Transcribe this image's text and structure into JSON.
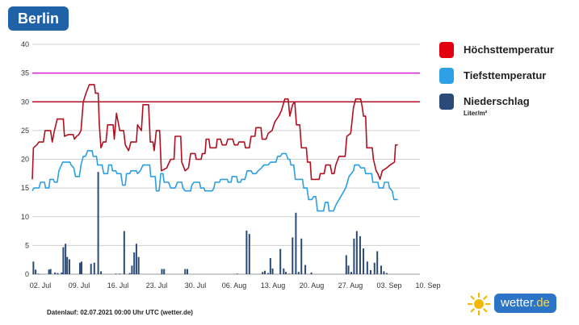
{
  "header": {
    "city": "Berlin"
  },
  "legend": {
    "items": [
      {
        "label": "Höchsttemperatur",
        "color": "#e3000f"
      },
      {
        "label": "Tiefsttemperatur",
        "color": "#2ea0e6"
      },
      {
        "label": "Niederschlag",
        "color": "#2a4a78",
        "unit": "Liter/m²"
      }
    ]
  },
  "footer": {
    "note": "Datenlauf: 02.07.2021 00:00 Uhr UTC (wetter.de)"
  },
  "brand": {
    "name": "wetter",
    "tld": ".de"
  },
  "chart_data": {
    "type": "line",
    "title": "Berlin",
    "ylim": [
      0,
      40
    ],
    "yticks": [
      0,
      5,
      10,
      15,
      20,
      25,
      30,
      35,
      40
    ],
    "x_tick_labels": [
      "02. Jul",
      "09. Jul",
      "16. Jul",
      "23. Jul",
      "30. Jul",
      "06. Aug",
      "13. Aug",
      "20. Aug",
      "27. Aug",
      "03. Sep",
      "10. Sep"
    ],
    "x_range_days": [
      0,
      70
    ],
    "reference_lines": [
      {
        "value": 35,
        "color": "#e020e0"
      },
      {
        "value": 30,
        "color": "#b01020"
      }
    ],
    "series": [
      {
        "name": "Höchsttemperatur",
        "color": "#b0101f",
        "points": [
          [
            0,
            16.5
          ],
          [
            0.2,
            22
          ],
          [
            0.8,
            22.5
          ],
          [
            1.2,
            23
          ],
          [
            2,
            23
          ],
          [
            2.3,
            25
          ],
          [
            3.3,
            25
          ],
          [
            3.6,
            23
          ],
          [
            4,
            25
          ],
          [
            4.5,
            27
          ],
          [
            5.6,
            27
          ],
          [
            5.8,
            24
          ],
          [
            6.5,
            24.3
          ],
          [
            7.4,
            24.3
          ],
          [
            7.6,
            23.5
          ],
          [
            8,
            24
          ],
          [
            8.4,
            24.3
          ],
          [
            8.8,
            25
          ],
          [
            9.2,
            30
          ],
          [
            9.7,
            31.5
          ],
          [
            10.3,
            33
          ],
          [
            11.2,
            33
          ],
          [
            11.4,
            31.5
          ],
          [
            11.9,
            31.5
          ],
          [
            12.1,
            26
          ],
          [
            12.4,
            22
          ],
          [
            12.8,
            23
          ],
          [
            13.3,
            23
          ],
          [
            13.6,
            26
          ],
          [
            14.6,
            26
          ],
          [
            14.8,
            23.5
          ],
          [
            15.2,
            28
          ],
          [
            15.8,
            25
          ],
          [
            16.5,
            25
          ],
          [
            16.8,
            22.5
          ],
          [
            17.4,
            21.5
          ],
          [
            17.8,
            23
          ],
          [
            18.8,
            23
          ],
          [
            19,
            26
          ],
          [
            19.7,
            25
          ],
          [
            20,
            29.5
          ],
          [
            21,
            29.5
          ],
          [
            21.3,
            23
          ],
          [
            21.8,
            23
          ],
          [
            22,
            21.5
          ],
          [
            22.4,
            25
          ],
          [
            23,
            25
          ],
          [
            23.3,
            18
          ],
          [
            24.3,
            18.5
          ],
          [
            24.5,
            19
          ],
          [
            25,
            20
          ],
          [
            25.6,
            20
          ],
          [
            25.8,
            24
          ],
          [
            26.8,
            24
          ],
          [
            27,
            19.5
          ],
          [
            27.6,
            18
          ],
          [
            28.2,
            18.5
          ],
          [
            28.6,
            21
          ],
          [
            29.4,
            21
          ],
          [
            29.6,
            20
          ],
          [
            30.5,
            20
          ],
          [
            30.7,
            21
          ],
          [
            31.2,
            21
          ],
          [
            31.4,
            23.5
          ],
          [
            31.9,
            23.5
          ],
          [
            32.1,
            22
          ],
          [
            33.2,
            22
          ],
          [
            33.4,
            23.5
          ],
          [
            34,
            23.5
          ],
          [
            34.3,
            22.5
          ],
          [
            35,
            22.5
          ],
          [
            35.3,
            23.5
          ],
          [
            36.2,
            23.5
          ],
          [
            36.5,
            22.5
          ],
          [
            37.1,
            22.5
          ],
          [
            37.3,
            23
          ],
          [
            38.3,
            23
          ],
          [
            38.5,
            22
          ],
          [
            39.2,
            22
          ],
          [
            39.5,
            24
          ],
          [
            40.2,
            24
          ],
          [
            40.4,
            25.5
          ],
          [
            41.3,
            25.5
          ],
          [
            41.5,
            23.5
          ],
          [
            42.2,
            23.5
          ],
          [
            42.6,
            24.5
          ],
          [
            43.3,
            25
          ],
          [
            43.8,
            26.5
          ],
          [
            44.5,
            27.5
          ],
          [
            45,
            28.5
          ],
          [
            45.6,
            30.5
          ],
          [
            46.2,
            30.5
          ],
          [
            46.5,
            27.5
          ],
          [
            47,
            29.5
          ],
          [
            47.4,
            30
          ],
          [
            47.7,
            26
          ],
          [
            48.3,
            26
          ],
          [
            48.6,
            22
          ],
          [
            49.5,
            22
          ],
          [
            49.7,
            19.5
          ],
          [
            50.2,
            19.5
          ],
          [
            50.4,
            16.5
          ],
          [
            51.8,
            16.5
          ],
          [
            52,
            17.5
          ],
          [
            52.7,
            17.5
          ],
          [
            53,
            19
          ],
          [
            53.8,
            19
          ],
          [
            54.1,
            17.5
          ],
          [
            54.5,
            17.5
          ],
          [
            54.8,
            19
          ],
          [
            55.4,
            20.5
          ],
          [
            56.5,
            20.5
          ],
          [
            56.8,
            24
          ],
          [
            57.5,
            24.5
          ],
          [
            58,
            29
          ],
          [
            58.4,
            30.5
          ],
          [
            59.3,
            30.5
          ],
          [
            59.6,
            29
          ],
          [
            59.8,
            27.5
          ],
          [
            60.2,
            27.5
          ],
          [
            60.4,
            22
          ],
          [
            61.4,
            22
          ],
          [
            61.6,
            20
          ],
          [
            62.1,
            18
          ],
          [
            62.4,
            17.5
          ],
          [
            62.8,
            16.5
          ],
          [
            63.2,
            18
          ],
          [
            64,
            18.5
          ],
          [
            64.6,
            19
          ],
          [
            65.4,
            19.5
          ],
          [
            65.6,
            22.5
          ],
          [
            66,
            22.5
          ]
        ]
      },
      {
        "name": "Tiefsttemperatur",
        "color": "#2a9fe4",
        "points": [
          [
            0,
            14.5
          ],
          [
            0.3,
            15
          ],
          [
            1.2,
            15
          ],
          [
            1.5,
            16
          ],
          [
            2.2,
            16
          ],
          [
            2.4,
            15
          ],
          [
            3,
            15
          ],
          [
            3.2,
            16.5
          ],
          [
            3.8,
            16.5
          ],
          [
            4,
            16
          ],
          [
            4.5,
            16
          ],
          [
            4.8,
            18
          ],
          [
            5.5,
            19.5
          ],
          [
            6.8,
            19.5
          ],
          [
            7,
            19
          ],
          [
            7.5,
            18.5
          ],
          [
            7.8,
            17
          ],
          [
            8.5,
            17
          ],
          [
            8.8,
            19
          ],
          [
            9.2,
            20.5
          ],
          [
            9.6,
            20.5
          ],
          [
            10,
            21.5
          ],
          [
            10.8,
            21.5
          ],
          [
            11,
            20.5
          ],
          [
            11.6,
            20.5
          ],
          [
            11.8,
            19
          ],
          [
            12.6,
            19
          ],
          [
            12.9,
            17.5
          ],
          [
            13.6,
            17.5
          ],
          [
            13.8,
            19
          ],
          [
            14.3,
            19
          ],
          [
            14.5,
            18
          ],
          [
            15.1,
            18
          ],
          [
            15.3,
            17.5
          ],
          [
            16,
            17.5
          ],
          [
            16.3,
            15.5
          ],
          [
            16.8,
            15.5
          ],
          [
            17,
            17.5
          ],
          [
            17.6,
            17.5
          ],
          [
            17.8,
            18
          ],
          [
            18.8,
            18
          ],
          [
            19,
            17.5
          ],
          [
            19.5,
            18
          ],
          [
            20,
            19
          ],
          [
            21.2,
            19
          ],
          [
            21.4,
            17
          ],
          [
            22.2,
            17
          ],
          [
            22.4,
            14.5
          ],
          [
            22.9,
            14.5
          ],
          [
            23.2,
            17.5
          ],
          [
            23.6,
            17.5
          ],
          [
            23.8,
            16
          ],
          [
            24.6,
            16
          ],
          [
            25,
            15
          ],
          [
            25.8,
            15
          ],
          [
            26.2,
            16
          ],
          [
            27,
            16
          ],
          [
            27.2,
            15
          ],
          [
            27.6,
            14.5
          ],
          [
            28.6,
            14.5
          ],
          [
            28.8,
            15.5
          ],
          [
            29.2,
            16
          ],
          [
            30.2,
            16
          ],
          [
            30.4,
            15
          ],
          [
            31,
            15
          ],
          [
            31.2,
            14.5
          ],
          [
            32.5,
            14.5
          ],
          [
            32.8,
            15
          ],
          [
            33,
            16
          ],
          [
            33.8,
            16
          ],
          [
            34,
            16.5
          ],
          [
            35.2,
            16.5
          ],
          [
            35.4,
            16
          ],
          [
            35.9,
            16
          ],
          [
            36.1,
            17
          ],
          [
            36.9,
            17
          ],
          [
            37.1,
            16
          ],
          [
            37.6,
            16
          ],
          [
            37.8,
            16.5
          ],
          [
            38.4,
            16.5
          ],
          [
            38.8,
            18
          ],
          [
            39.5,
            18
          ],
          [
            39.8,
            17.5
          ],
          [
            40.4,
            17.5
          ],
          [
            40.8,
            18
          ],
          [
            41.4,
            18.5
          ],
          [
            41.8,
            19
          ],
          [
            42.6,
            19
          ],
          [
            43,
            19.5
          ],
          [
            44,
            19.5
          ],
          [
            44.3,
            20.5
          ],
          [
            44.8,
            20.5
          ],
          [
            45.1,
            21
          ],
          [
            45.8,
            21
          ],
          [
            46.2,
            20
          ],
          [
            46.5,
            20
          ],
          [
            46.7,
            19
          ],
          [
            47.2,
            19
          ],
          [
            47.5,
            16.5
          ],
          [
            48.8,
            16.5
          ],
          [
            49,
            15
          ],
          [
            49.6,
            15
          ],
          [
            49.9,
            13
          ],
          [
            50.5,
            13
          ],
          [
            50.8,
            13.5
          ],
          [
            51.2,
            13.5
          ],
          [
            51.5,
            11
          ],
          [
            52.6,
            11
          ],
          [
            52.9,
            12.5
          ],
          [
            53.4,
            12.5
          ],
          [
            53.6,
            11
          ],
          [
            54.4,
            11
          ],
          [
            54.8,
            12
          ],
          [
            55.4,
            13
          ],
          [
            56,
            14
          ],
          [
            56.6,
            15
          ],
          [
            57.2,
            17
          ],
          [
            58,
            18
          ],
          [
            58.2,
            19
          ],
          [
            59,
            19
          ],
          [
            59.3,
            18.5
          ],
          [
            60,
            18.5
          ],
          [
            60.2,
            17.5
          ],
          [
            61.3,
            17.5
          ],
          [
            61.5,
            16
          ],
          [
            62.4,
            16
          ],
          [
            62.6,
            15
          ],
          [
            63.4,
            15
          ],
          [
            63.6,
            16
          ],
          [
            64.3,
            16
          ],
          [
            64.5,
            15
          ],
          [
            65,
            14.5
          ],
          [
            65.3,
            13
          ],
          [
            66,
            13
          ]
        ]
      }
    ],
    "bars": {
      "name": "Niederschlag",
      "unit": "Liter/m²",
      "color": "#2a4a78",
      "x": [
        0.2,
        0.6,
        1.1,
        3.0,
        3.3,
        4.1,
        4.6,
        5.3,
        5.6,
        6.0,
        6.3,
        6.7,
        8.6,
        8.9,
        10.6,
        11.2,
        11.9,
        12.4,
        15.1,
        15.8,
        16.6,
        17.6,
        18.0,
        18.4,
        18.8,
        19.2,
        23.4,
        23.8,
        27.6,
        28.0,
        37.0,
        38.7,
        39.2,
        41.6,
        42.0,
        42.6,
        43.0,
        43.4,
        44.8,
        45.4,
        45.8,
        46.4,
        47.0,
        47.6,
        48.1,
        48.6,
        49.3,
        50.4,
        56.7,
        57.1,
        57.6,
        58.1,
        58.6,
        59.2,
        59.8,
        60.5,
        61.1,
        61.8,
        62.3,
        63.0,
        63.5,
        64.0
      ],
      "values": [
        2.2,
        0.8,
        0.1,
        0.8,
        0.9,
        0.3,
        0.2,
        0.3,
        4.7,
        5.3,
        3.0,
        2.6,
        2.0,
        2.2,
        1.8,
        2.0,
        17.8,
        0.5,
        0.1,
        0.1,
        7.5,
        0.2,
        1.5,
        3.8,
        5.3,
        3.0,
        0.9,
        0.9,
        0.9,
        0.9,
        0.1,
        7.6,
        7.0,
        0.4,
        0.6,
        0.2,
        2.8,
        1.0,
        4.4,
        1.0,
        0.4,
        0.1,
        6.4,
        10.7,
        0.4,
        6.2,
        1.6,
        0.3,
        3.3,
        1.5,
        0.4,
        6.2,
        7.5,
        6.6,
        4.5,
        2.2,
        0.7,
        2.0,
        4.0,
        1.5,
        0.5,
        0.2
      ]
    }
  }
}
